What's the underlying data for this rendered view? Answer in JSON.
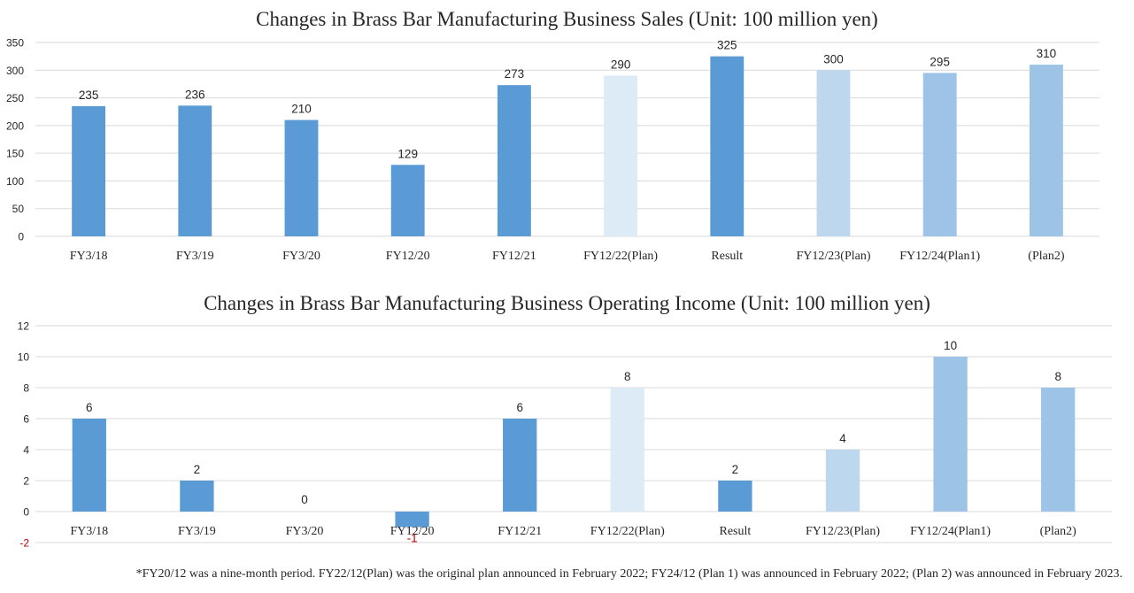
{
  "colors": {
    "result": "#5b9bd5",
    "plan_original": "#ddebf7",
    "plan_fy23": "#bdd7ee",
    "plan_fy24": "#9dc3e6",
    "gridline": "#d9d9d9",
    "text": "#262626",
    "negative_label": "#c00000"
  },
  "chart_data": [
    {
      "type": "bar",
      "title": "Changes in Brass Bar Manufacturing Business Sales (Unit: 100 million yen)",
      "categories": [
        "FY3/18",
        "FY3/19",
        "FY3/20",
        "FY12/20",
        "FY12/21",
        "FY12/22(Plan)",
        "Result",
        "FY12/23(Plan)",
        "FY12/24(Plan1)",
        "(Plan2)"
      ],
      "values": [
        235,
        236,
        210,
        129,
        273,
        290,
        325,
        300,
        295,
        310
      ],
      "bar_colors": [
        "result",
        "result",
        "result",
        "result",
        "result",
        "plan_original",
        "result",
        "plan_fy23",
        "plan_fy24",
        "plan_fy24"
      ],
      "ylim": [
        0,
        350
      ],
      "yticks": [
        0,
        50,
        100,
        150,
        200,
        250,
        300,
        350
      ],
      "grid": true,
      "data_labels": true
    },
    {
      "type": "bar",
      "title": "Changes in Brass Bar Manufacturing Business Operating Income (Unit: 100 million yen)",
      "categories": [
        "FY3/18",
        "FY3/19",
        "FY3/20",
        "FY12/20",
        "FY12/21",
        "FY12/22(Plan)",
        "Result",
        "FY12/23(Plan)",
        "FY12/24(Plan1)",
        "(Plan2)"
      ],
      "values": [
        6,
        2,
        0,
        -1,
        6,
        8,
        2,
        4,
        10,
        8
      ],
      "bar_colors": [
        "result",
        "result",
        "result",
        "result",
        "result",
        "plan_original",
        "result",
        "plan_fy23",
        "plan_fy24",
        "plan_fy24"
      ],
      "ylim": [
        -2,
        12
      ],
      "yticks": [
        -2,
        0,
        2,
        4,
        6,
        8,
        10,
        12
      ],
      "grid": true,
      "data_labels": true
    }
  ],
  "footnote": "*FY20/12 was a nine-month period. FY22/12(Plan) was the original plan announced in February 2022; FY24/12 (Plan 1) was announced in February 2022; (Plan 2) was announced in February 2023."
}
